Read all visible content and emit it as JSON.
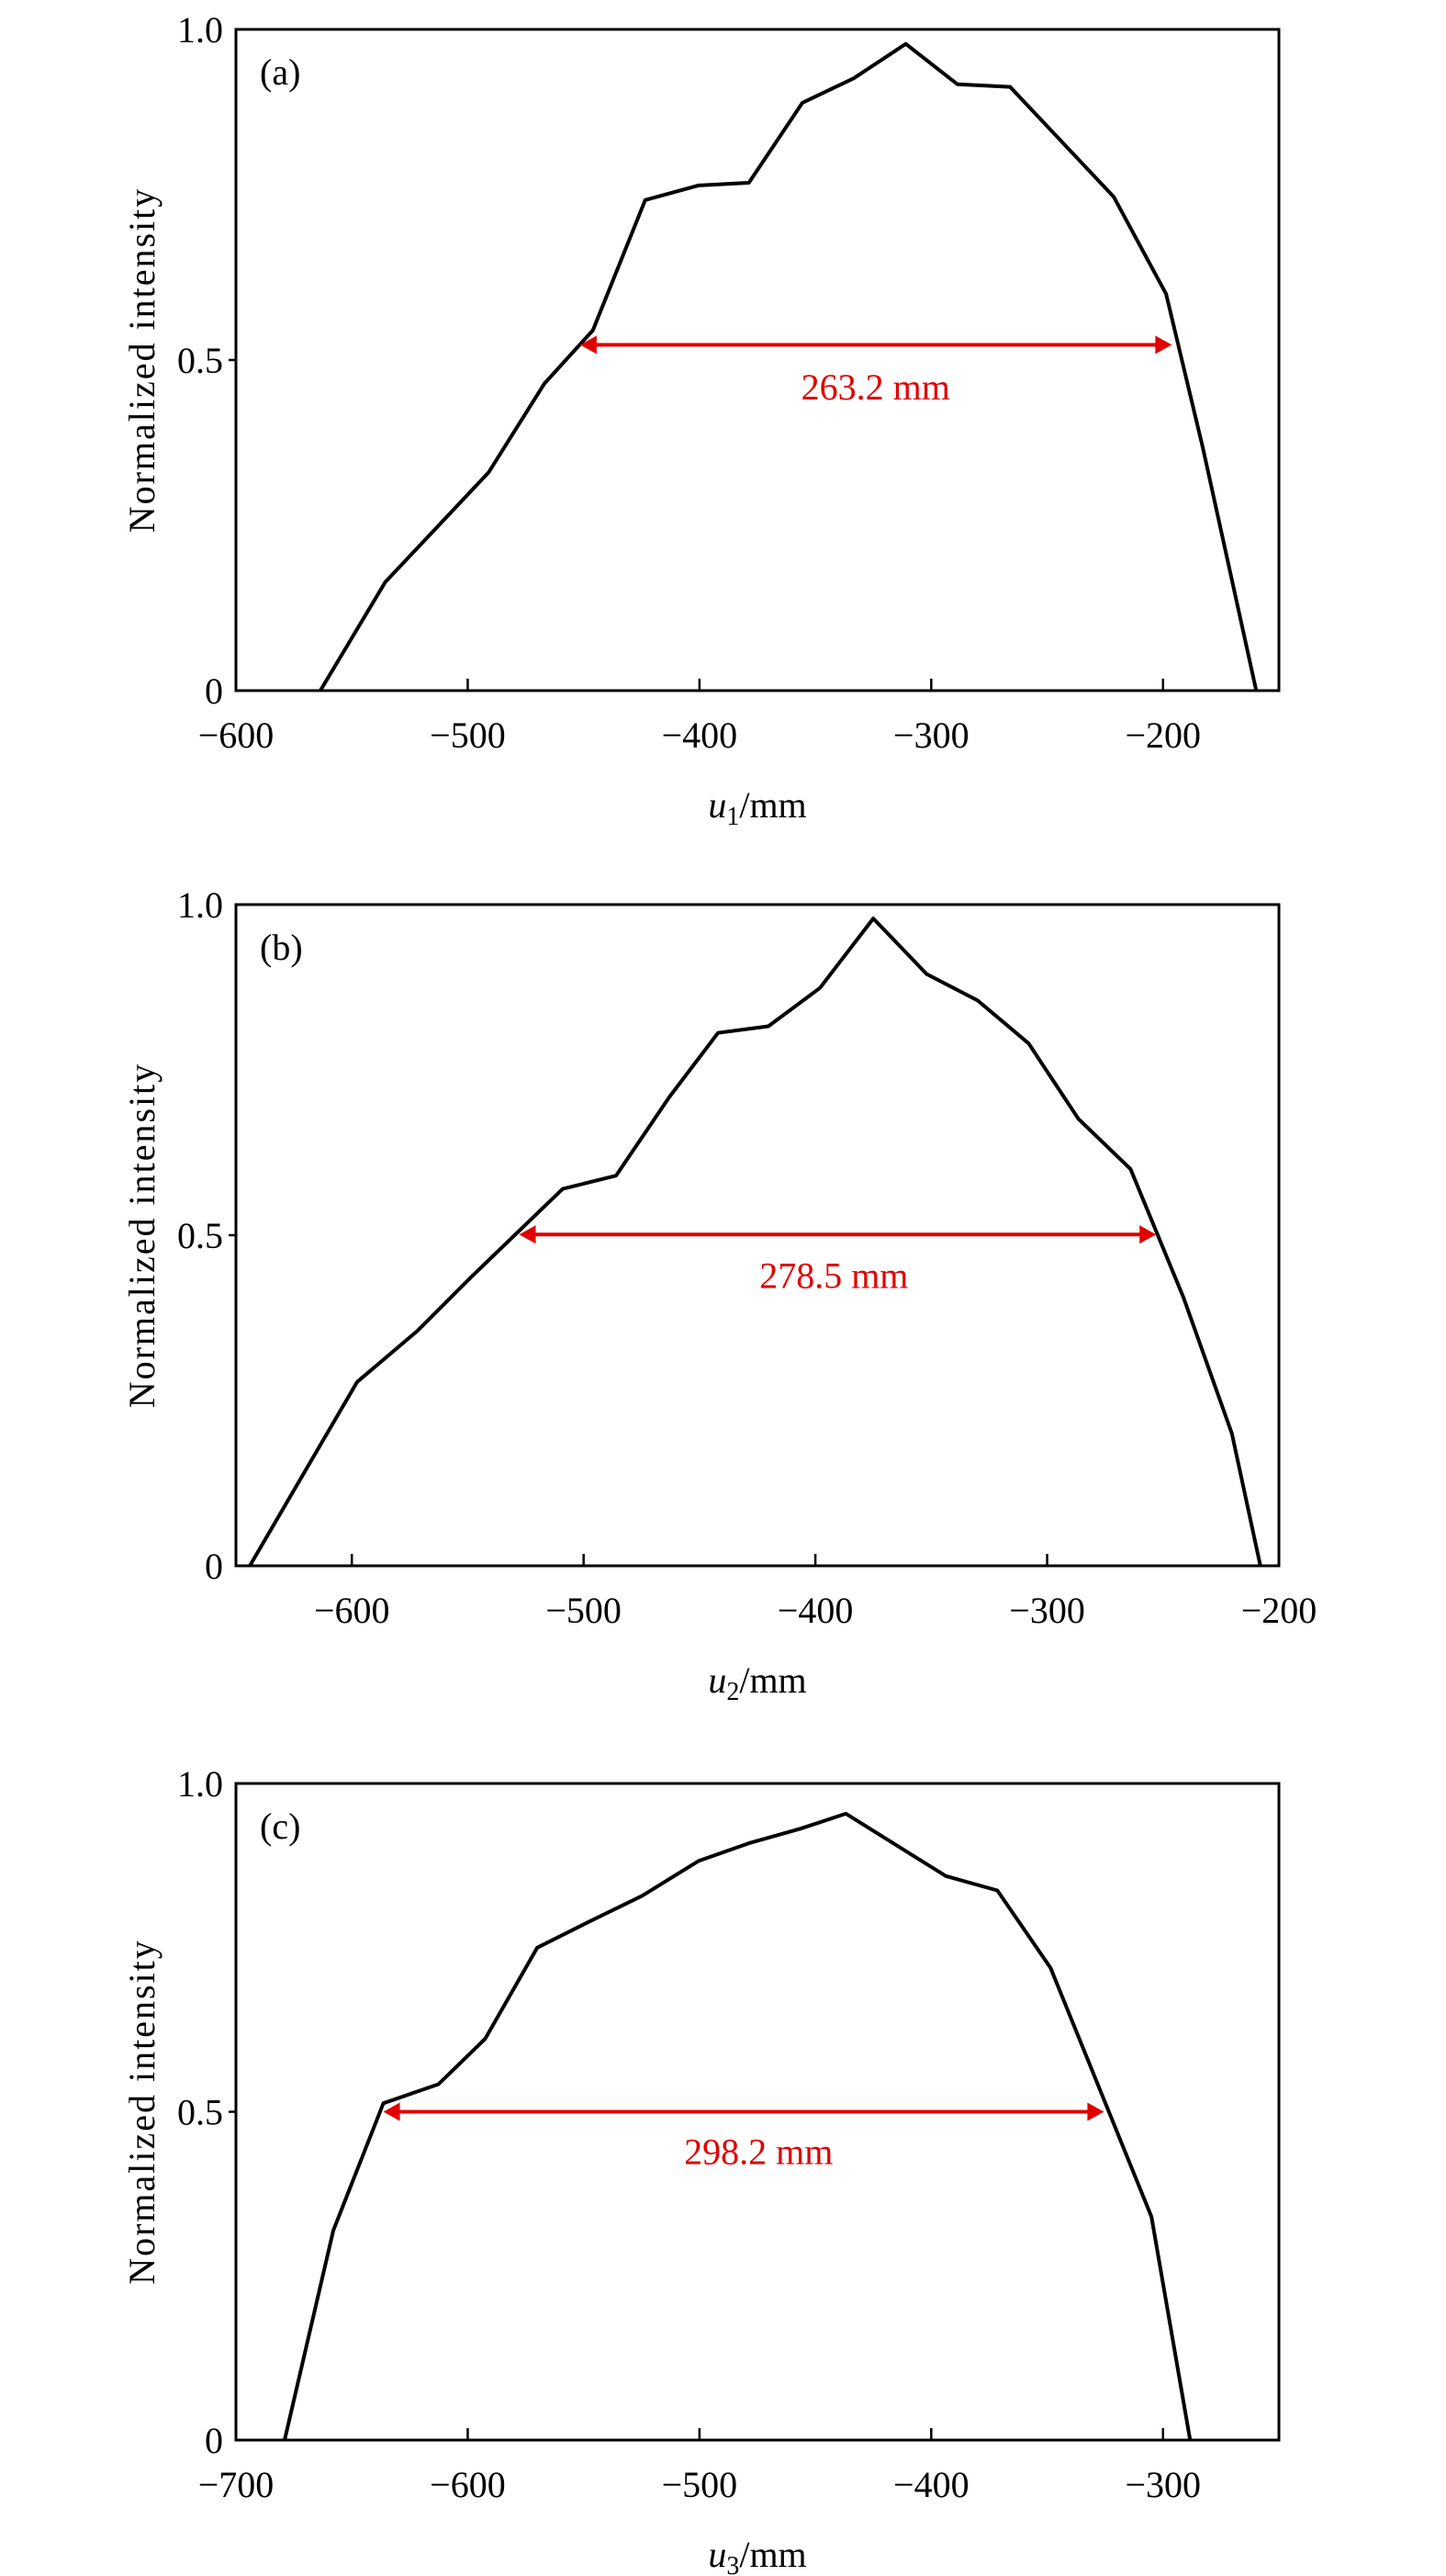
{
  "chart_data": [
    {
      "type": "line",
      "panel_label": "(a)",
      "xlabel_var": "u",
      "xlabel_sub": "1",
      "xlabel_unit": "/mm",
      "ylabel": "Normalized intensity",
      "xlim": [
        -600,
        -150
      ],
      "ylim": [
        0,
        1.0
      ],
      "xticks": [
        -600,
        -500,
        -400,
        -300,
        -200
      ],
      "xtick_labels": [
        "−600",
        "−500",
        "−400",
        "−300",
        "−200"
      ],
      "yticks": [
        0,
        0.5,
        1.0
      ],
      "ytick_labels": [
        "0",
        "0.5",
        "1.0"
      ],
      "grid": false,
      "series": [
        {
          "name": "intensity",
          "color": "#000000",
          "x": [
            -563.6,
            -535.6,
            -491,
            -467,
            -446,
            -423.4,
            -400.4,
            -378.7,
            -355.6,
            -333.5,
            -311,
            -288.7,
            -266,
            -221.3,
            -198.7,
            -182.8,
            -159.8
          ],
          "y": [
            0,
            0.164,
            0.33,
            0.464,
            0.545,
            0.742,
            0.764,
            0.768,
            0.889,
            0.926,
            0.978,
            0.917,
            0.913,
            0.747,
            0.6,
            0.367,
            0
          ]
        }
      ],
      "annotation": {
        "text": "263.2 mm",
        "x_start": -451.5,
        "x_end": -196.2,
        "y": 0.523,
        "label_x": -324,
        "label_y": 0.44,
        "color": "#e00000"
      }
    },
    {
      "type": "line",
      "panel_label": "(b)",
      "xlabel_var": "u",
      "xlabel_sub": "2",
      "xlabel_unit": "/mm",
      "ylabel": "Normalized intensity",
      "xlim": [
        -650,
        -200
      ],
      "ylim": [
        0,
        1.0
      ],
      "xticks": [
        -600,
        -500,
        -400,
        -300,
        -200
      ],
      "xtick_labels": [
        "−600",
        "−500",
        "−400",
        "−300",
        "−200"
      ],
      "yticks": [
        0,
        0.5,
        1.0
      ],
      "ytick_labels": [
        "0",
        "0.5",
        "1.0"
      ],
      "grid": false,
      "series": [
        {
          "name": "intensity",
          "color": "#000000",
          "x": [
            -644,
            -597.7,
            -571.8,
            -548.7,
            -509,
            -486,
            -463,
            -442,
            -420.3,
            -398,
            -375,
            -352,
            -330,
            -308,
            -286.5,
            -264,
            -241.2,
            -220.3,
            -208
          ],
          "y": [
            0,
            0.278,
            0.355,
            0.436,
            0.57,
            0.59,
            0.709,
            0.806,
            0.816,
            0.874,
            0.979,
            0.895,
            0.855,
            0.79,
            0.676,
            0.6,
            0.406,
            0.2,
            0
          ]
        }
      ],
      "annotation": {
        "text": "278.5 mm",
        "x_start": -527.8,
        "x_end": -253,
        "y": 0.501,
        "label_x": -392,
        "label_y": 0.42,
        "color": "#e00000"
      }
    },
    {
      "type": "line",
      "panel_label": "(c)",
      "xlabel_var": "u",
      "xlabel_sub": "3",
      "xlabel_unit": "/mm",
      "ylabel": "Normalized intensity",
      "xlim": [
        -700,
        -250
      ],
      "ylim": [
        0,
        1.0
      ],
      "xticks": [
        -700,
        -600,
        -500,
        -400,
        -300
      ],
      "xtick_labels": [
        "−700",
        "−600",
        "−500",
        "−400",
        "−300"
      ],
      "yticks": [
        0,
        0.5,
        1.0
      ],
      "ytick_labels": [
        "0",
        "0.5",
        "1.0"
      ],
      "grid": false,
      "series": [
        {
          "name": "intensity",
          "color": "#000000",
          "x": [
            -679,
            -658,
            -636.4,
            -612.6,
            -592.5,
            -570,
            -548.5,
            -524.7,
            -500.4,
            -478.7,
            -456.5,
            -436.8,
            -393.7,
            -371.5,
            -348.5,
            -305,
            -288.3
          ],
          "y": [
            0,
            0.319,
            0.513,
            0.542,
            0.611,
            0.75,
            0.788,
            0.829,
            0.882,
            0.909,
            0.931,
            0.954,
            0.859,
            0.837,
            0.719,
            0.34,
            0
          ]
        }
      ],
      "annotation": {
        "text": "298.2 mm",
        "x_start": -636.4,
        "x_end": -325.5,
        "y": 0.5,
        "label_x": -474.5,
        "label_y": 0.42,
        "color": "#e00000"
      }
    }
  ]
}
